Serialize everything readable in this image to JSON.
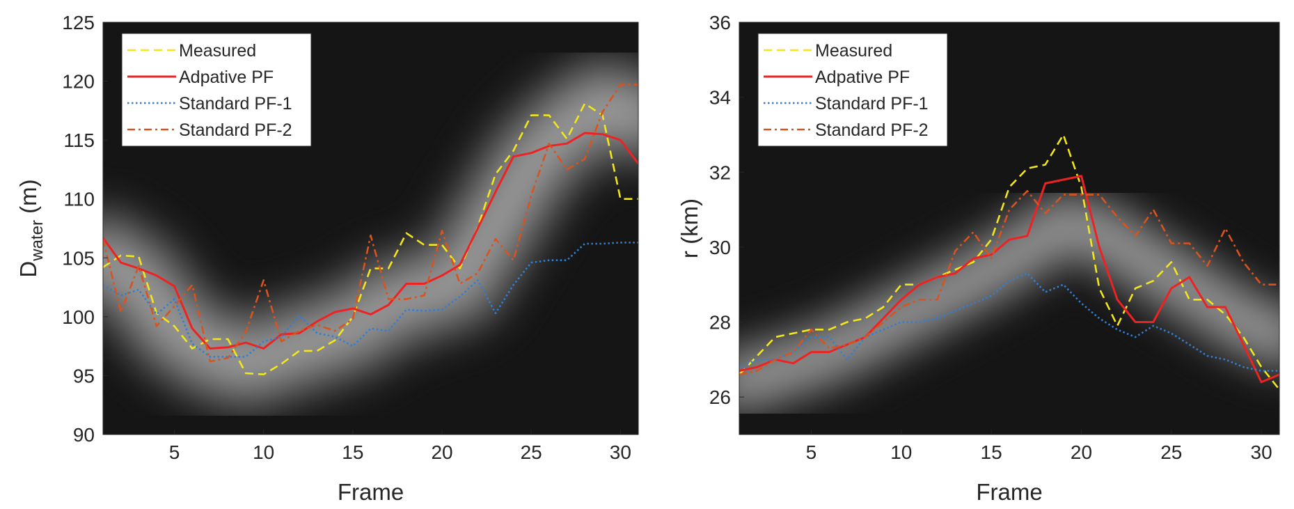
{
  "chart_data": [
    {
      "type": "line",
      "background": "heatmap",
      "xlabel": "Frame",
      "ylabel_main": "D",
      "ylabel_sub": "water",
      "ylabel_unit": " (m)",
      "xlim": [
        1,
        31
      ],
      "ylim": [
        90,
        125
      ],
      "xticks": [
        5,
        10,
        15,
        20,
        25,
        30
      ],
      "yticks": [
        90,
        95,
        100,
        105,
        110,
        115,
        120,
        125
      ],
      "legend_position": "top-left",
      "heat_ridge": [
        [
          1,
          105
        ],
        [
          3,
          103
        ],
        [
          5,
          99
        ],
        [
          7,
          97
        ],
        [
          9,
          96
        ],
        [
          11,
          97
        ],
        [
          13,
          98
        ],
        [
          15,
          99
        ],
        [
          17,
          101
        ],
        [
          19,
          102
        ],
        [
          21,
          103
        ],
        [
          23,
          108
        ],
        [
          25,
          113
        ],
        [
          27,
          116
        ],
        [
          29,
          118
        ],
        [
          31,
          117
        ]
      ],
      "series": [
        {
          "name": "Measured",
          "color": "#f2e61c",
          "dash": "dashed",
          "values": [
            104.2,
            105.2,
            105.1,
            100.3,
            99.2,
            97.3,
            98.1,
            98.1,
            95.2,
            95.1,
            96.0,
            97.1,
            97.1,
            98.0,
            100.0,
            104.1,
            104.1,
            107.1,
            106.1,
            106.1,
            104.1,
            107.6,
            112.1,
            114.1,
            117.1,
            117.1,
            115.1,
            118.1,
            117.1,
            110.0,
            110.0
          ]
        },
        {
          "name": "Adpative PF",
          "color": "#ee2222",
          "dash": "solid",
          "values": [
            106.7,
            104.6,
            104.1,
            103.5,
            102.6,
            99.0,
            97.3,
            97.4,
            97.8,
            97.3,
            98.5,
            98.6,
            99.6,
            100.4,
            100.7,
            100.2,
            101.0,
            102.8,
            102.8,
            103.5,
            104.4,
            107.5,
            110.6,
            113.6,
            113.9,
            114.5,
            114.7,
            115.6,
            115.5,
            115.0,
            113.0
          ]
        },
        {
          "name": "Standard PF-1",
          "color": "#2f7fd6",
          "dash": "dotted",
          "values": [
            102.7,
            101.8,
            102.3,
            100.2,
            101.5,
            97.7,
            96.6,
            96.6,
            96.6,
            97.9,
            98.3,
            100.1,
            98.6,
            98.3,
            97.5,
            99.0,
            98.8,
            100.6,
            100.5,
            100.6,
            101.7,
            103.1,
            100.3,
            102.7,
            104.6,
            104.8,
            104.8,
            106.2,
            106.2,
            106.3,
            106.3
          ]
        },
        {
          "name": "Standard PF-2",
          "color": "#d9531e",
          "dash": "dashdot",
          "values": [
            106.6,
            100.4,
            104.3,
            99.2,
            100.9,
            102.7,
            96.2,
            96.5,
            98.7,
            103.1,
            97.9,
            98.8,
            99.3,
            98.8,
            99.8,
            106.9,
            101.5,
            101.5,
            101.8,
            107.3,
            102.8,
            103.7,
            106.6,
            104.8,
            110.3,
            114.7,
            112.5,
            113.4,
            117.4,
            119.7,
            119.7
          ]
        }
      ]
    },
    {
      "type": "line",
      "background": "heatmap",
      "xlabel": "Frame",
      "ylabel_main": "r (km)",
      "ylabel_sub": "",
      "ylabel_unit": "",
      "xlim": [
        1,
        31
      ],
      "ylim": [
        25,
        36
      ],
      "xticks": [
        5,
        10,
        15,
        20,
        25,
        30
      ],
      "yticks": [
        26,
        28,
        30,
        32,
        34,
        36
      ],
      "legend_position": "top-left",
      "heat_ridge": [
        [
          1,
          26.4
        ],
        [
          3,
          26.7
        ],
        [
          5,
          27.0
        ],
        [
          7,
          27.4
        ],
        [
          9,
          27.9
        ],
        [
          11,
          28.4
        ],
        [
          13,
          28.9
        ],
        [
          15,
          29.4
        ],
        [
          17,
          30.0
        ],
        [
          19,
          30.6
        ],
        [
          21,
          30.4
        ],
        [
          23,
          29.8
        ],
        [
          25,
          29.2
        ],
        [
          27,
          28.6
        ],
        [
          29,
          28.0
        ],
        [
          31,
          27.6
        ]
      ],
      "series": [
        {
          "name": "Measured",
          "color": "#f2e61c",
          "dash": "dashed",
          "values": [
            26.6,
            27.1,
            27.6,
            27.7,
            27.8,
            27.8,
            28.0,
            28.1,
            28.4,
            29.0,
            29.0,
            29.2,
            29.4,
            29.6,
            30.2,
            31.6,
            32.1,
            32.2,
            33.0,
            31.6,
            28.9,
            27.9,
            28.9,
            29.1,
            29.6,
            28.6,
            28.6,
            28.2,
            27.6,
            26.8,
            26.2
          ]
        },
        {
          "name": "Adpative PF",
          "color": "#ee2222",
          "dash": "solid",
          "values": [
            26.7,
            26.8,
            27.0,
            26.9,
            27.2,
            27.2,
            27.4,
            27.6,
            28.1,
            28.6,
            29.0,
            29.2,
            29.3,
            29.7,
            29.8,
            30.2,
            30.3,
            31.7,
            31.8,
            31.9,
            30.0,
            28.6,
            28.0,
            28.0,
            28.9,
            29.2,
            28.4,
            28.4,
            27.4,
            26.4,
            26.6
          ]
        },
        {
          "name": "Standard PF-1",
          "color": "#2f7fd6",
          "dash": "dotted",
          "values": [
            26.8,
            27.0,
            27.0,
            27.2,
            27.6,
            27.6,
            27.0,
            27.6,
            27.8,
            28.0,
            28.0,
            28.1,
            28.3,
            28.5,
            28.7,
            29.1,
            29.3,
            28.8,
            29.0,
            28.5,
            28.1,
            27.8,
            27.6,
            27.9,
            27.7,
            27.4,
            27.1,
            27.0,
            26.8,
            26.7,
            26.7
          ]
        },
        {
          "name": "Standard PF-2",
          "color": "#d9531e",
          "dash": "dashdot",
          "values": [
            26.6,
            26.7,
            27.0,
            27.2,
            27.8,
            27.3,
            27.4,
            27.6,
            28.0,
            28.4,
            28.6,
            28.6,
            29.9,
            30.4,
            29.7,
            31.0,
            31.5,
            30.9,
            31.4,
            31.4,
            31.4,
            30.8,
            30.3,
            31.0,
            30.1,
            30.1,
            29.5,
            30.5,
            29.6,
            29.0,
            29.0
          ]
        }
      ]
    }
  ]
}
